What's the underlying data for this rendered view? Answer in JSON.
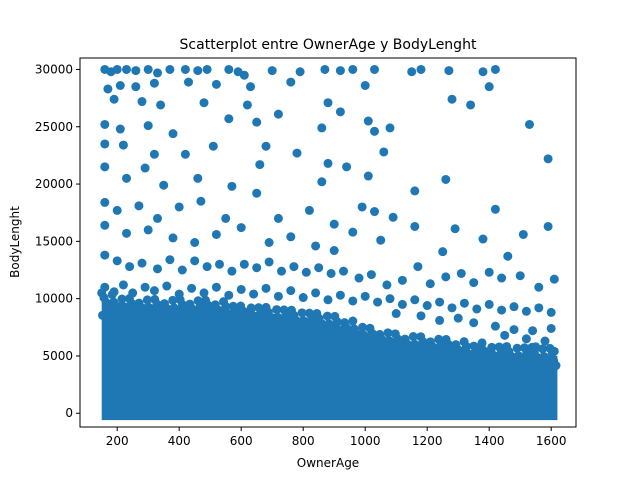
{
  "chart_data": {
    "type": "scatter",
    "title": "Scatterplot entre OwnerAge y BodyLenght",
    "xlabel": "OwnerAge",
    "ylabel": "BodyLenght",
    "xlim": [
      80,
      1680
    ],
    "ylim": [
      -1200,
      31000
    ],
    "xticks": [
      200,
      400,
      600,
      800,
      1000,
      1200,
      1400,
      1600
    ],
    "yticks": [
      0,
      5000,
      10000,
      15000,
      20000,
      25000,
      30000
    ],
    "xtick_labels": [
      "200",
      "400",
      "600",
      "800",
      "1000",
      "1200",
      "1400",
      "1600"
    ],
    "ytick_labels": [
      "0",
      "5000",
      "10000",
      "15000",
      "20000",
      "25000",
      "30000"
    ],
    "grid": false,
    "legend": "none",
    "marker_color": "#1f77b4",
    "series": [
      {
        "x_range": [
          150,
          1620
        ],
        "points": [
          [
            160,
            30000
          ],
          [
            180,
            29800
          ],
          [
            200,
            30000
          ],
          [
            230,
            30000
          ],
          [
            260,
            29900
          ],
          [
            300,
            30000
          ],
          [
            330,
            29700
          ],
          [
            370,
            30000
          ],
          [
            420,
            30000
          ],
          [
            460,
            29900
          ],
          [
            490,
            30000
          ],
          [
            560,
            30000
          ],
          [
            590,
            29800
          ],
          [
            610,
            29500
          ],
          [
            700,
            29900
          ],
          [
            790,
            29800
          ],
          [
            870,
            30000
          ],
          [
            920,
            29900
          ],
          [
            960,
            30000
          ],
          [
            1030,
            30000
          ],
          [
            1150,
            29800
          ],
          [
            1180,
            30000
          ],
          [
            1270,
            29900
          ],
          [
            1380,
            29800
          ],
          [
            1420,
            30000
          ],
          [
            170,
            28300
          ],
          [
            210,
            28600
          ],
          [
            260,
            28500
          ],
          [
            320,
            28800
          ],
          [
            430,
            28900
          ],
          [
            520,
            28700
          ],
          [
            630,
            28500
          ],
          [
            760,
            28900
          ],
          [
            1000,
            28600
          ],
          [
            1400,
            28500
          ],
          [
            190,
            27400
          ],
          [
            280,
            27200
          ],
          [
            340,
            26900
          ],
          [
            480,
            27100
          ],
          [
            620,
            26900
          ],
          [
            720,
            26100
          ],
          [
            880,
            27100
          ],
          [
            920,
            26300
          ],
          [
            1010,
            25500
          ],
          [
            1030,
            24600
          ],
          [
            1280,
            27400
          ],
          [
            1340,
            26900
          ],
          [
            1530,
            25200
          ],
          [
            160,
            25200
          ],
          [
            210,
            24800
          ],
          [
            300,
            25100
          ],
          [
            380,
            24400
          ],
          [
            560,
            25700
          ],
          [
            650,
            25400
          ],
          [
            860,
            24900
          ],
          [
            1080,
            24900
          ],
          [
            160,
            23500
          ],
          [
            220,
            23400
          ],
          [
            320,
            22600
          ],
          [
            420,
            22600
          ],
          [
            510,
            23300
          ],
          [
            680,
            23300
          ],
          [
            780,
            22700
          ],
          [
            880,
            21800
          ],
          [
            1060,
            22800
          ],
          [
            1590,
            22200
          ],
          [
            160,
            21500
          ],
          [
            230,
            20500
          ],
          [
            290,
            21400
          ],
          [
            350,
            19900
          ],
          [
            460,
            20500
          ],
          [
            570,
            19800
          ],
          [
            660,
            21700
          ],
          [
            860,
            20200
          ],
          [
            940,
            21500
          ],
          [
            1010,
            20700
          ],
          [
            1160,
            19400
          ],
          [
            1260,
            20400
          ],
          [
            160,
            18400
          ],
          [
            200,
            17700
          ],
          [
            270,
            18100
          ],
          [
            330,
            17000
          ],
          [
            400,
            18000
          ],
          [
            470,
            18500
          ],
          [
            550,
            17000
          ],
          [
            650,
            19200
          ],
          [
            720,
            17000
          ],
          [
            820,
            17700
          ],
          [
            900,
            16500
          ],
          [
            990,
            18000
          ],
          [
            1030,
            17600
          ],
          [
            1090,
            17100
          ],
          [
            160,
            16400
          ],
          [
            230,
            15700
          ],
          [
            300,
            16000
          ],
          [
            380,
            15300
          ],
          [
            450,
            14900
          ],
          [
            520,
            15600
          ],
          [
            600,
            16200
          ],
          [
            690,
            14900
          ],
          [
            760,
            15400
          ],
          [
            840,
            14600
          ],
          [
            900,
            14200
          ],
          [
            960,
            15800
          ],
          [
            1050,
            15100
          ],
          [
            1160,
            16300
          ],
          [
            1250,
            14100
          ],
          [
            1290,
            16100
          ],
          [
            1380,
            15200
          ],
          [
            1420,
            17800
          ],
          [
            1460,
            13700
          ],
          [
            1510,
            15600
          ],
          [
            1590,
            16300
          ],
          [
            160,
            13800
          ],
          [
            200,
            13300
          ],
          [
            240,
            12800
          ],
          [
            280,
            13100
          ],
          [
            330,
            12600
          ],
          [
            370,
            13400
          ],
          [
            410,
            12500
          ],
          [
            450,
            13300
          ],
          [
            490,
            12800
          ],
          [
            530,
            13000
          ],
          [
            570,
            12400
          ],
          [
            610,
            13000
          ],
          [
            650,
            12700
          ],
          [
            690,
            13200
          ],
          [
            730,
            12400
          ],
          [
            770,
            12800
          ],
          [
            810,
            12300
          ],
          [
            850,
            12700
          ],
          [
            890,
            12200
          ],
          [
            930,
            12400
          ],
          [
            980,
            11800
          ],
          [
            1020,
            12100
          ],
          [
            1070,
            11200
          ],
          [
            1120,
            11600
          ],
          [
            1170,
            12800
          ],
          [
            1210,
            11300
          ],
          [
            1260,
            11900
          ],
          [
            1310,
            12200
          ],
          [
            1350,
            11400
          ],
          [
            1400,
            12300
          ],
          [
            1440,
            11800
          ],
          [
            1500,
            12000
          ],
          [
            1560,
            11000
          ],
          [
            1610,
            11700
          ],
          [
            160,
            11000
          ],
          [
            190,
            10600
          ],
          [
            220,
            11200
          ],
          [
            250,
            10500
          ],
          [
            290,
            11000
          ],
          [
            320,
            10700
          ],
          [
            360,
            11100
          ],
          [
            400,
            10400
          ],
          [
            440,
            10900
          ],
          [
            480,
            10500
          ],
          [
            520,
            11000
          ],
          [
            560,
            10300
          ],
          [
            600,
            10800
          ],
          [
            640,
            10400
          ],
          [
            680,
            10900
          ],
          [
            720,
            10200
          ],
          [
            760,
            10700
          ],
          [
            800,
            10100
          ],
          [
            840,
            10500
          ],
          [
            880,
            9900
          ],
          [
            920,
            10300
          ],
          [
            960,
            9800
          ],
          [
            1000,
            10200
          ],
          [
            1040,
            9700
          ],
          [
            1080,
            10000
          ],
          [
            1120,
            9500
          ],
          [
            1160,
            9900
          ],
          [
            1200,
            9400
          ],
          [
            1240,
            9700
          ],
          [
            1280,
            9200
          ],
          [
            1320,
            9600
          ],
          [
            1360,
            9100
          ],
          [
            1400,
            9500
          ],
          [
            1440,
            9000
          ],
          [
            1480,
            9300
          ],
          [
            1520,
            8900
          ],
          [
            1560,
            9200
          ],
          [
            1600,
            8800
          ],
          [
            1300,
            8300
          ],
          [
            1350,
            7900
          ],
          [
            1420,
            7600
          ],
          [
            1480,
            7300
          ],
          [
            1540,
            7200
          ],
          [
            1600,
            7400
          ],
          [
            1240,
            8100
          ],
          [
            1180,
            8500
          ],
          [
            1100,
            8700
          ],
          [
            1450,
            6800
          ],
          [
            1520,
            6500
          ],
          [
            1580,
            6300
          ],
          [
            1610,
            5400
          ],
          [
            1550,
            5800
          ]
        ]
      }
    ]
  }
}
